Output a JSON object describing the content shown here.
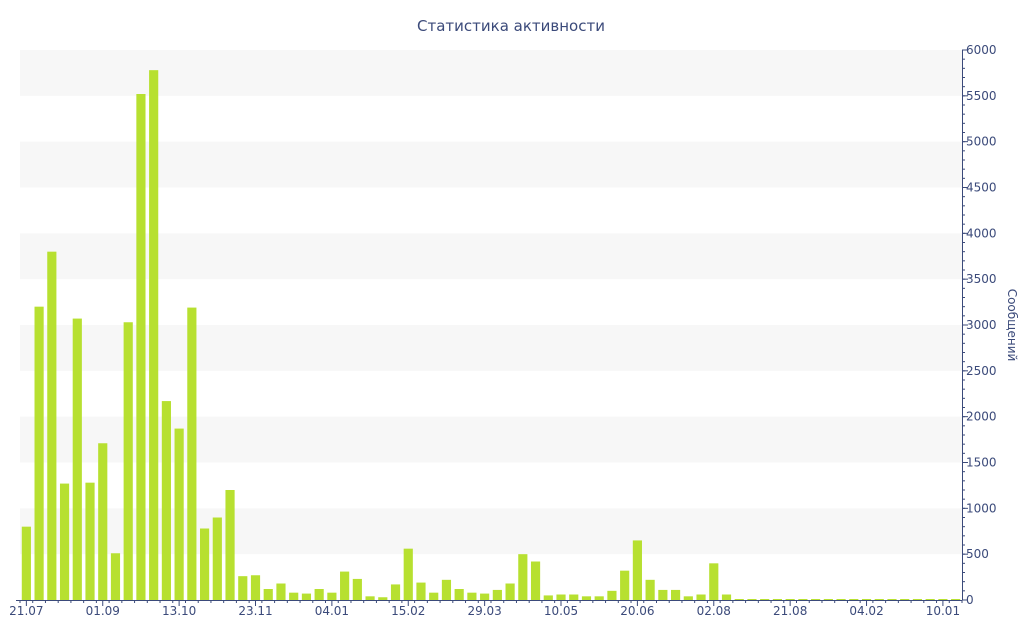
{
  "chart_data": {
    "type": "bar",
    "title": "Статистика активности",
    "xlabel": "",
    "ylabel": "Сообщений",
    "y_axis_side": "right",
    "ylim": [
      0,
      6000
    ],
    "y_ticks": [
      0,
      500,
      1000,
      1500,
      2000,
      2500,
      3000,
      3500,
      4000,
      4500,
      5000,
      5500,
      6000
    ],
    "x_tick_labels": [
      {
        "label": "21.07",
        "index": 0
      },
      {
        "label": "01.09",
        "index": 6
      },
      {
        "label": "13.10",
        "index": 12
      },
      {
        "label": "23.11",
        "index": 18
      },
      {
        "label": "04.01",
        "index": 24
      },
      {
        "label": "15.02",
        "index": 30
      },
      {
        "label": "29.03",
        "index": 36
      },
      {
        "label": "10.05",
        "index": 42
      },
      {
        "label": "20.06",
        "index": 48
      },
      {
        "label": "02.08",
        "index": 54
      },
      {
        "label": "21.08",
        "index": 60
      },
      {
        "label": "04.02",
        "index": 66
      },
      {
        "label": "10.01",
        "index": 72
      }
    ],
    "values": [
      800,
      3200,
      3800,
      1270,
      3070,
      1280,
      1710,
      510,
      3030,
      5520,
      5780,
      2170,
      1870,
      3190,
      780,
      900,
      1200,
      260,
      270,
      120,
      180,
      80,
      70,
      120,
      80,
      310,
      230,
      40,
      30,
      170,
      560,
      190,
      80,
      220,
      120,
      80,
      70,
      110,
      180,
      500,
      420,
      50,
      60,
      60,
      40,
      40,
      100,
      320,
      650,
      220,
      110,
      110,
      40,
      60,
      400,
      60,
      10,
      10,
      10,
      10,
      10,
      10,
      10,
      10,
      10,
      10,
      10,
      10,
      10,
      10,
      10,
      10,
      10,
      10
    ],
    "bar_color": "#b7e030",
    "grid": "alternating horizontal bands",
    "band_color": "#f7f7f7",
    "axis_color": "#3b4a7a"
  }
}
